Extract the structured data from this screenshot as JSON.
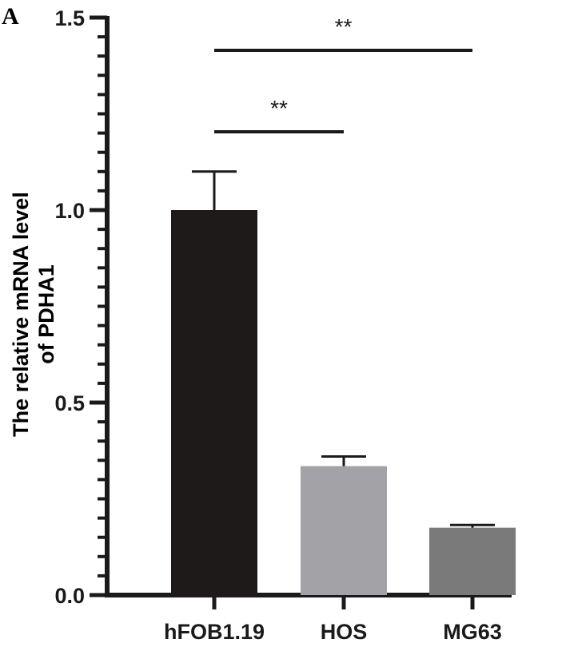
{
  "panel_label": "A",
  "chart_data": {
    "type": "bar",
    "categories": [
      "hFOB1.19",
      "HOS",
      "MG63"
    ],
    "values": [
      1.0,
      0.335,
      0.175
    ],
    "errors": [
      0.1,
      0.025,
      0.007
    ],
    "bar_colors": [
      "#1e1a1a",
      "#a3a3a7",
      "#7a7a7a"
    ],
    "ylabel_lines": [
      "The relative mRNA level",
      "of PDHA1"
    ],
    "xlabel": "",
    "ylim": [
      0,
      1.5
    ],
    "major_ticks": [
      0.0,
      0.5,
      1.0,
      1.5
    ],
    "major_tick_labels": [
      "0.0",
      "0.5",
      "1.0",
      "1.5"
    ],
    "minor_tick_step": 0.05,
    "significance": [
      {
        "from": "hFOB1.19",
        "to": "HOS",
        "label": "**"
      },
      {
        "from": "hFOB1.19",
        "to": "MG63",
        "label": "**"
      }
    ]
  }
}
